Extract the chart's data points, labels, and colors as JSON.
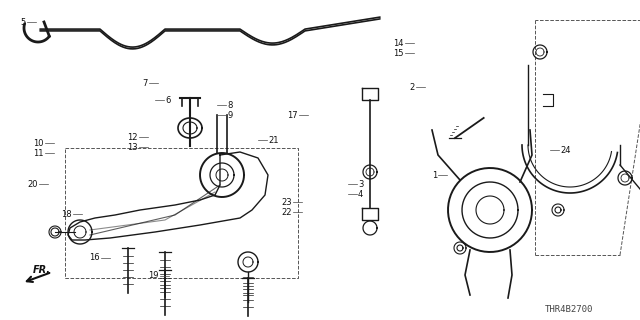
{
  "background_color": "#ffffff",
  "diagram_code_label": "THR4B2700",
  "fig_width": 6.4,
  "fig_height": 3.2,
  "dpi": 100,
  "lc": "#1a1a1a",
  "lw": 1.0,
  "labels": {
    "5": [
      0.048,
      0.068,
      "right"
    ],
    "7": [
      0.232,
      0.258,
      "right"
    ],
    "6": [
      0.258,
      0.295,
      "left"
    ],
    "12": [
      0.215,
      0.43,
      "right"
    ],
    "13": [
      0.215,
      0.45,
      "right"
    ],
    "10": [
      0.068,
      0.445,
      "right"
    ],
    "11": [
      0.068,
      0.462,
      "right"
    ],
    "20": [
      0.06,
      0.572,
      "right"
    ],
    "18": [
      0.112,
      0.668,
      "right"
    ],
    "16": [
      0.155,
      0.8,
      "right"
    ],
    "19": [
      0.248,
      0.862,
      "right"
    ],
    "8": [
      0.355,
      0.325,
      "left"
    ],
    "9": [
      0.355,
      0.342,
      "left"
    ],
    "21": [
      0.418,
      0.438,
      "left"
    ],
    "17": [
      0.465,
      0.355,
      "right"
    ],
    "23": [
      0.455,
      0.625,
      "right"
    ],
    "22": [
      0.455,
      0.643,
      "right"
    ],
    "3": [
      0.558,
      0.568,
      "left"
    ],
    "4": [
      0.558,
      0.585,
      "left"
    ],
    "14": [
      0.628,
      0.132,
      "right"
    ],
    "15": [
      0.628,
      0.15,
      "right"
    ],
    "2": [
      0.648,
      0.268,
      "right"
    ],
    "1": [
      0.682,
      0.545,
      "right"
    ],
    "24": [
      0.875,
      0.468,
      "left"
    ]
  }
}
